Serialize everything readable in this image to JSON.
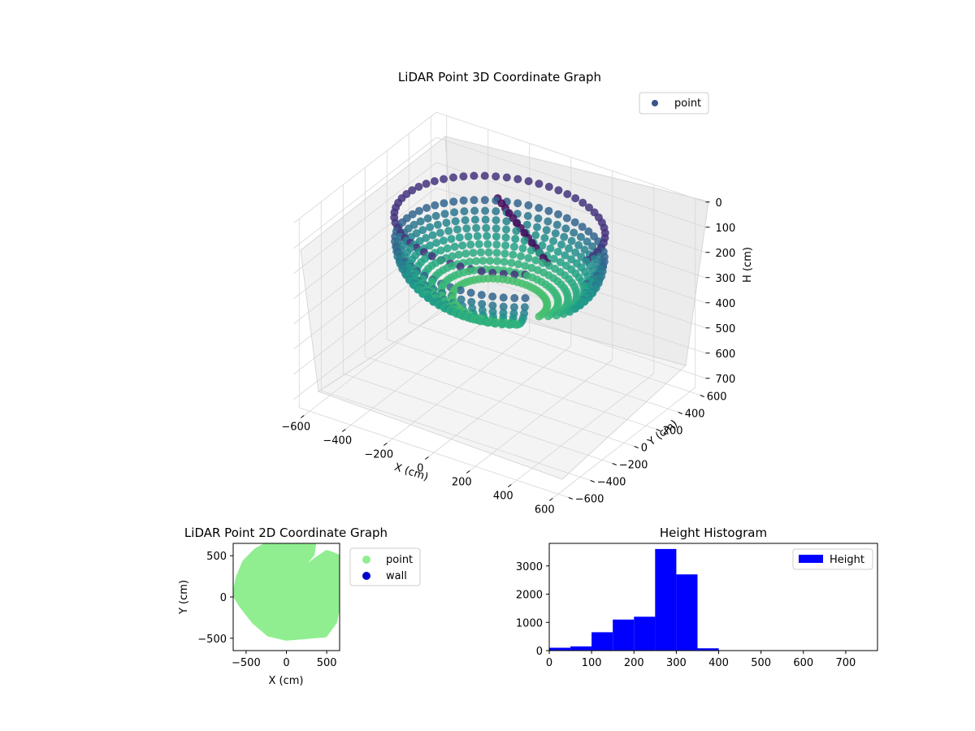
{
  "figure": {
    "background": "#ffffff"
  },
  "chart_data": [
    {
      "type": "scatter",
      "projection": "3d",
      "title": "LiDAR Point 3D Coordinate Graph",
      "xlabel": "X (cm)",
      "ylabel": "Y (cm)",
      "zlabel": "H (cm)",
      "xticks": [
        "−600",
        "−400",
        "−200",
        "0",
        "200",
        "400",
        "600"
      ],
      "yticks": [
        "600",
        "400",
        "200",
        "0",
        "−200",
        "−400",
        "−600"
      ],
      "zticks": [
        "0",
        "100",
        "200",
        "300",
        "400",
        "500",
        "600",
        "700"
      ],
      "xlim": [
        -650,
        650
      ],
      "ylim": [
        -650,
        650
      ],
      "zlim": [
        0,
        750
      ],
      "z_inverted": true,
      "grid": true,
      "colormap": "viridis",
      "legend": {
        "placement": "top-right",
        "entries": [
          {
            "label": "point",
            "color": "#3b528b"
          }
        ]
      },
      "series": [
        {
          "name": "point",
          "shape": "bowl",
          "rim_radius": 450,
          "rim_height": 50,
          "floor_height": 350,
          "opening_start_deg": 315,
          "opening_end_deg": 350
        }
      ]
    },
    {
      "type": "scatter",
      "title": "LiDAR Point 2D Coordinate Graph",
      "xlabel": "X (cm)",
      "ylabel": "Y (cm)",
      "xticks": [
        "−500",
        "0",
        "500"
      ],
      "yticks": [
        "500",
        "0",
        "−500"
      ],
      "xlim": [
        -660,
        660
      ],
      "ylim": [
        -650,
        650
      ],
      "legend": {
        "placement": "outside-right",
        "entries": [
          {
            "label": "point",
            "color": "#90ee90"
          },
          {
            "label": "wall",
            "color": "#0000cd"
          }
        ]
      },
      "series": [
        {
          "name": "point",
          "color": "#90ee90",
          "outline": [
            [
              -640,
              30
            ],
            [
              -600,
              230
            ],
            [
              -520,
              420
            ],
            [
              -380,
              560
            ],
            [
              -220,
              650
            ],
            [
              340,
              650
            ],
            [
              320,
              520
            ],
            [
              200,
              380
            ],
            [
              160,
              270
            ],
            [
              260,
              370
            ],
            [
              380,
              460
            ],
            [
              500,
              540
            ],
            [
              560,
              520
            ],
            [
              660,
              480
            ],
            [
              660,
              0
            ],
            [
              600,
              -300
            ],
            [
              480,
              -460
            ],
            [
              250,
              -480
            ],
            [
              0,
              -500
            ],
            [
              -220,
              -450
            ],
            [
              -400,
              -300
            ],
            [
              -560,
              -100
            ]
          ]
        },
        {
          "name": "wall",
          "color": "#0000cd",
          "points": []
        }
      ]
    },
    {
      "type": "bar",
      "title": "Height Histogram",
      "xlabel": "",
      "ylabel": "",
      "xticks": [
        "0",
        "100",
        "200",
        "300",
        "400",
        "500",
        "600",
        "700"
      ],
      "yticks": [
        "0",
        "1000",
        "2000",
        "3000"
      ],
      "xlim": [
        0,
        775
      ],
      "ylim": [
        0,
        3800
      ],
      "legend": {
        "placement": "top-right",
        "entries": [
          {
            "label": "Height",
            "color": "#0000ff"
          }
        ]
      },
      "bin_edges": [
        0,
        50,
        100,
        150,
        200,
        250,
        300,
        350,
        400,
        450,
        500,
        550,
        600,
        650,
        700,
        750
      ],
      "series": [
        {
          "name": "Height",
          "color": "#0000ff",
          "values": [
            100,
            150,
            650,
            1100,
            1200,
            3600,
            2700,
            80,
            0,
            0,
            0,
            0,
            0,
            0,
            0
          ]
        }
      ]
    }
  ]
}
